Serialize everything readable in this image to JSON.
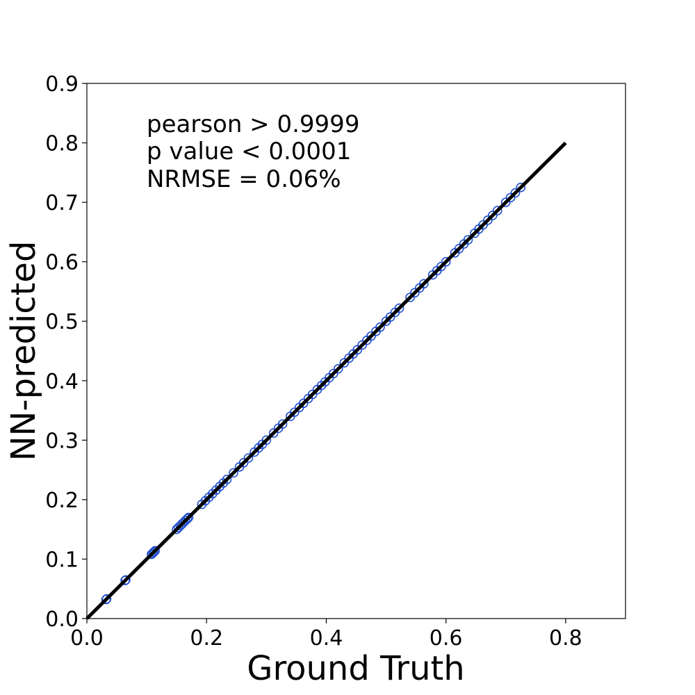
{
  "chart_data": {
    "type": "scatter",
    "title": "",
    "xlabel": "Ground Truth",
    "ylabel": "NN-predicted",
    "xlim": [
      0.0,
      0.9
    ],
    "ylim": [
      0.0,
      0.9
    ],
    "xticks": [
      "0.0",
      "0.2",
      "0.4",
      "0.6",
      "0.8"
    ],
    "yticks": [
      "0.0",
      "0.1",
      "0.2",
      "0.3",
      "0.4",
      "0.5",
      "0.6",
      "0.7",
      "0.8",
      "0.9"
    ],
    "grid": false,
    "legend": "none",
    "annotations": [
      "pearson > 0.9999",
      "p value < 0.0001",
      "NRMSE = 0.06%"
    ],
    "marker_color": "#1f4fd1",
    "line_color": "#000000",
    "reference_line": {
      "x": [
        0.0,
        0.8
      ],
      "y": [
        0.0,
        0.8
      ]
    },
    "series": [
      {
        "x": [
          0.032,
          0.033,
          0.064,
          0.065,
          0.108,
          0.11,
          0.112,
          0.114,
          0.15,
          0.153,
          0.156,
          0.159,
          0.162,
          0.165,
          0.168,
          0.17,
          0.192,
          0.198,
          0.204,
          0.21,
          0.216,
          0.222,
          0.228,
          0.234,
          0.245,
          0.255,
          0.262,
          0.27,
          0.28,
          0.287,
          0.293,
          0.3,
          0.312,
          0.32,
          0.327,
          0.34,
          0.347,
          0.355,
          0.362,
          0.37,
          0.377,
          0.385,
          0.392,
          0.398,
          0.405,
          0.412,
          0.42,
          0.43,
          0.438,
          0.445,
          0.452,
          0.46,
          0.468,
          0.475,
          0.483,
          0.49,
          0.5,
          0.507,
          0.515,
          0.522,
          0.54,
          0.548,
          0.556,
          0.563,
          0.578,
          0.585,
          0.592,
          0.6,
          0.615,
          0.622,
          0.63,
          0.637,
          0.648,
          0.655,
          0.662,
          0.67,
          0.678,
          0.686,
          0.7,
          0.708,
          0.716,
          0.725
        ],
        "y": [
          0.032,
          0.033,
          0.064,
          0.065,
          0.108,
          0.11,
          0.112,
          0.114,
          0.15,
          0.153,
          0.156,
          0.159,
          0.162,
          0.165,
          0.168,
          0.17,
          0.192,
          0.198,
          0.204,
          0.21,
          0.216,
          0.222,
          0.228,
          0.234,
          0.245,
          0.255,
          0.262,
          0.27,
          0.28,
          0.287,
          0.293,
          0.3,
          0.312,
          0.32,
          0.327,
          0.34,
          0.347,
          0.355,
          0.362,
          0.37,
          0.377,
          0.385,
          0.392,
          0.398,
          0.405,
          0.412,
          0.42,
          0.43,
          0.438,
          0.445,
          0.452,
          0.46,
          0.468,
          0.475,
          0.483,
          0.49,
          0.5,
          0.507,
          0.515,
          0.522,
          0.54,
          0.548,
          0.556,
          0.563,
          0.578,
          0.585,
          0.592,
          0.6,
          0.615,
          0.622,
          0.63,
          0.637,
          0.648,
          0.655,
          0.662,
          0.67,
          0.678,
          0.686,
          0.7,
          0.708,
          0.716,
          0.725
        ]
      }
    ]
  }
}
